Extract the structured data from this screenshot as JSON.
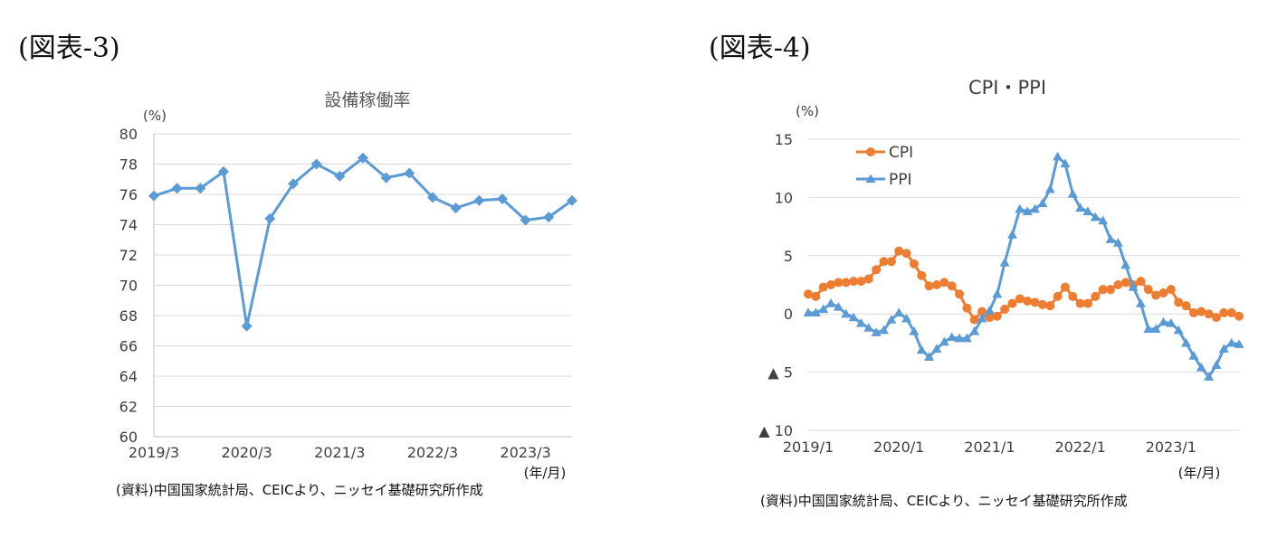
{
  "figures": {
    "fig3": {
      "heading": "(図表-3)",
      "source_note": "(資料)中国国家統計局、CEICより、ニッセイ基礎研究所作成"
    },
    "fig4": {
      "heading": "(図表-4)",
      "source_note": "(資料)中国国家統計局、CEICより、ニッセイ基礎研究所作成"
    }
  },
  "colors": {
    "blue": "#5b9bd5",
    "orange": "#ed7d31",
    "grid": "#d9d9d9",
    "axis": "#bfbfbf"
  },
  "chart_data": [
    {
      "type": "line",
      "title": "設備稼働率",
      "ylabel": "(%)",
      "xlabel": "(年/月)",
      "ylim": [
        60,
        80
      ],
      "yticks": [
        60,
        62,
        64,
        66,
        68,
        70,
        72,
        74,
        76,
        78,
        80
      ],
      "x_tick_labels": [
        "2019/3",
        "2020/3",
        "2021/3",
        "2022/3",
        "2023/3"
      ],
      "x_tick_index": [
        0,
        4,
        8,
        12,
        16
      ],
      "grid": true,
      "marker": "diamond",
      "series": [
        {
          "values": [
            75.9,
            76.4,
            76.4,
            77.5,
            67.3,
            74.4,
            76.7,
            78.0,
            77.2,
            78.4,
            77.1,
            77.4,
            75.8,
            75.1,
            75.6,
            75.7,
            74.3,
            74.5,
            75.6
          ]
        }
      ]
    },
    {
      "type": "line",
      "title": "CPI・PPI",
      "ylabel": "(%)",
      "xlabel": "(年/月)",
      "ylim": [
        -10,
        15
      ],
      "yticks": [
        15,
        10,
        5,
        0,
        -5,
        -10
      ],
      "ytick_labels": [
        "15",
        "10",
        "5",
        "0",
        "▲ 5",
        "▲ 10"
      ],
      "x_tick_labels": [
        "2019/1",
        "2020/1",
        "2021/1",
        "2022/1",
        "2023/1"
      ],
      "x_tick_index": [
        0,
        12,
        24,
        36,
        48
      ],
      "grid": true,
      "legend": "top-left",
      "series": [
        {
          "name": "CPI",
          "color": "#ed7d31",
          "marker": "circle",
          "values": [
            1.7,
            1.5,
            2.3,
            2.5,
            2.7,
            2.7,
            2.8,
            2.8,
            3.0,
            3.8,
            4.5,
            4.5,
            5.4,
            5.2,
            4.3,
            3.3,
            2.4,
            2.5,
            2.7,
            2.4,
            1.7,
            0.5,
            -0.5,
            0.2,
            -0.3,
            -0.2,
            0.4,
            0.9,
            1.3,
            1.1,
            1.0,
            0.8,
            0.7,
            1.5,
            2.3,
            1.5,
            0.9,
            0.9,
            1.5,
            2.1,
            2.1,
            2.5,
            2.7,
            2.5,
            2.8,
            2.1,
            1.6,
            1.8,
            2.1,
            1.0,
            0.7,
            0.1,
            0.2,
            0.0,
            -0.3,
            0.1,
            0.1,
            -0.2
          ]
        },
        {
          "name": "PPI",
          "color": "#5b9bd5",
          "marker": "triangle",
          "values": [
            0.1,
            0.1,
            0.4,
            0.9,
            0.6,
            0.0,
            -0.3,
            -0.8,
            -1.2,
            -1.6,
            -1.4,
            -0.5,
            0.1,
            -0.4,
            -1.5,
            -3.1,
            -3.7,
            -3.0,
            -2.4,
            -2.0,
            -2.1,
            -2.1,
            -1.5,
            -0.4,
            0.3,
            1.7,
            4.4,
            6.8,
            9.0,
            8.8,
            9.0,
            9.5,
            10.7,
            13.5,
            12.9,
            10.3,
            9.1,
            8.8,
            8.3,
            8.0,
            6.4,
            6.1,
            4.2,
            2.3,
            0.9,
            -1.3,
            -1.3,
            -0.7,
            -0.8,
            -1.4,
            -2.5,
            -3.6,
            -4.6,
            -5.4,
            -4.4,
            -3.0,
            -2.5,
            -2.6
          ]
        }
      ]
    }
  ]
}
